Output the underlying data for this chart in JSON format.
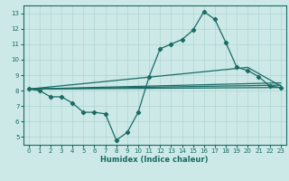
{
  "xlabel": "Humidex (Indice chaleur)",
  "xlim": [
    -0.5,
    23.5
  ],
  "ylim": [
    4.5,
    13.5
  ],
  "yticks": [
    5,
    6,
    7,
    8,
    9,
    10,
    11,
    12,
    13
  ],
  "xticks": [
    0,
    1,
    2,
    3,
    4,
    5,
    6,
    7,
    8,
    9,
    10,
    11,
    12,
    13,
    14,
    15,
    16,
    17,
    18,
    19,
    20,
    21,
    22,
    23
  ],
  "bg_color": "#cce9e7",
  "grid_color": "#aed4d1",
  "line_color": "#1a6b64",
  "main_series": {
    "x": [
      0,
      1,
      2,
      3,
      4,
      5,
      6,
      7,
      8,
      9,
      10,
      11,
      12,
      13,
      14,
      15,
      16,
      17,
      18,
      19,
      20,
      21,
      22,
      23
    ],
    "y": [
      8.1,
      8.0,
      7.6,
      7.6,
      7.2,
      6.6,
      6.6,
      6.5,
      4.8,
      5.3,
      6.6,
      8.9,
      10.7,
      11.0,
      11.3,
      11.9,
      13.1,
      12.6,
      11.1,
      9.5,
      9.3,
      8.9,
      8.3,
      8.2
    ]
  },
  "straight_lines": [
    {
      "x": [
        0,
        23
      ],
      "y": [
        8.1,
        8.2
      ]
    },
    {
      "x": [
        0,
        23
      ],
      "y": [
        8.1,
        8.35
      ]
    },
    {
      "x": [
        0,
        23
      ],
      "y": [
        8.1,
        8.5
      ]
    },
    {
      "x": [
        0,
        20,
        23
      ],
      "y": [
        8.1,
        9.5,
        8.3
      ]
    }
  ],
  "tick_fontsize": 5,
  "xlabel_fontsize": 6,
  "linewidth": 0.9,
  "markersize": 2.2
}
